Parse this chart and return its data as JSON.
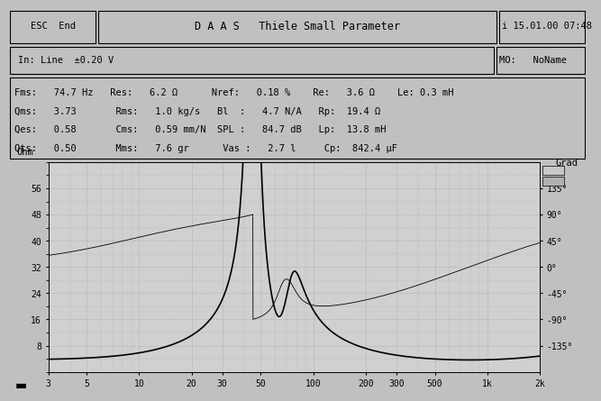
{
  "title_bar": "D A A S   Thiele Small Parameter",
  "esc_text": "ESC  End",
  "info_text": "i 15.01.00 07:48",
  "input_text": "In: Line  ±0.20 V",
  "mo_text": "MO:   NoName",
  "param_line1": "Fms:   74.7 Hz   Res:   6.2 Ω      Nref:   0.18 %    Re:   3.6 Ω    Le: 0.3 mH",
  "param_line2": "Qms:   3.73       Rms:   1.0 kg/s   Bl  :   4.7 N/A   Rp:  19.4 Ω",
  "param_line3": "Qes:   0.58       Cms:   0.59 mm/N  SPL :   84.7 dB   Lp:  13.8 mH",
  "param_line4": "Qts:   0.50       Mms:   7.6 gr      Vas :   2.7 l     Cp:  842.4 μF",
  "bg_color": "#c0c0c0",
  "plot_bg": "#d0d0d0",
  "grid_color": "#999999",
  "black": "#000000",
  "ylabel_left": "Ohm",
  "ylabel_right": "Grad",
  "yticks_left": [
    8,
    16,
    24,
    32,
    40,
    48,
    56
  ],
  "yticks_right": [
    -135,
    -90,
    -45,
    0,
    45,
    90,
    135
  ],
  "ylim_left": [
    0,
    64
  ],
  "ylim_right": [
    -180,
    180
  ],
  "xtick_labels": [
    "3",
    "5",
    "10",
    "20",
    "30",
    "50",
    "100",
    "200",
    "300",
    "500",
    "1k",
    "2k"
  ],
  "xtick_values": [
    3,
    5,
    10,
    20,
    30,
    50,
    100,
    200,
    300,
    500,
    1000,
    2000
  ],
  "Re": 3.6,
  "Le": 0.0003,
  "Rp": 19.4,
  "Lp": 0.0138,
  "Cp_val": 0.0008424,
  "fms": 74.7,
  "Qms": 3.73,
  "Qes": 0.58,
  "font_family": "monospace"
}
